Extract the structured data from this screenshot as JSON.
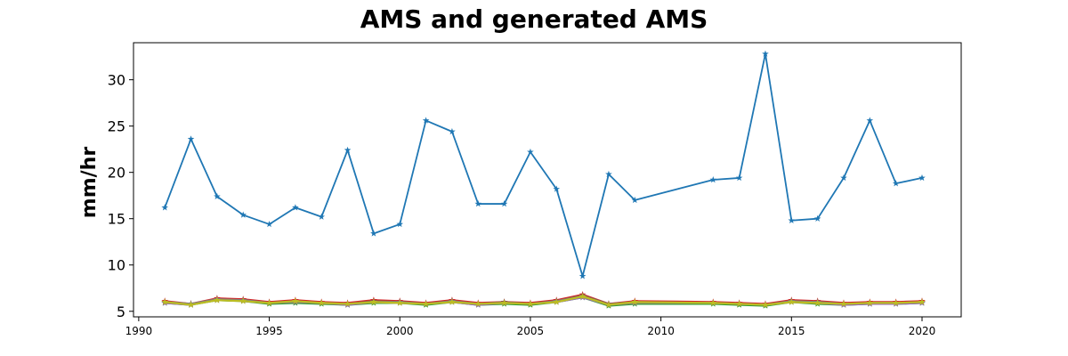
{
  "chart_data": {
    "type": "line",
    "title": "AMS and generated AMS",
    "xlabel": "",
    "ylabel": "mm/hr",
    "xlim": [
      1989.8,
      2021.5
    ],
    "ylim": [
      4.4,
      34.0
    ],
    "xticks": [
      1990,
      1995,
      2000,
      2005,
      2010,
      2015,
      2020
    ],
    "yticks": [
      5,
      10,
      15,
      20,
      25,
      30
    ],
    "grid": false,
    "legend": "none",
    "series": [
      {
        "color": "#1f77b4",
        "marker": "star",
        "x": [
          1991,
          1992,
          1993,
          1994,
          1995,
          1996,
          1997,
          1998,
          1999,
          2000,
          2001,
          2002,
          2003,
          2004,
          2005,
          2006,
          2007,
          2008,
          2009,
          2012,
          2013,
          2014,
          2015,
          2016,
          2017,
          2018,
          2019,
          2020
        ],
        "values": [
          16.2,
          23.6,
          17.4,
          15.4,
          14.4,
          16.2,
          15.2,
          22.4,
          13.4,
          14.4,
          25.6,
          24.4,
          16.6,
          16.6,
          22.2,
          18.2,
          8.8,
          19.8,
          17.0,
          19.2,
          19.4,
          32.8,
          14.8,
          15.0,
          19.4,
          25.6,
          18.8,
          19.4
        ]
      },
      {
        "color": "#ff7f0e",
        "marker": "star",
        "x": [
          1991,
          1992,
          1993,
          1994,
          1995,
          1996,
          1997,
          1998,
          1999,
          2000,
          2001,
          2002,
          2003,
          2004,
          2005,
          2006,
          2007,
          2008,
          2009,
          2012,
          2013,
          2014,
          2015,
          2016,
          2017,
          2018,
          2019,
          2020
        ],
        "values": [
          6.0,
          5.8,
          6.3,
          6.2,
          5.9,
          6.1,
          5.9,
          5.8,
          6.1,
          6.0,
          5.8,
          6.1,
          5.8,
          5.9,
          5.8,
          6.1,
          6.6,
          5.7,
          6.0,
          5.9,
          5.8,
          5.7,
          6.1,
          6.0,
          5.8,
          5.9,
          5.9,
          6.0
        ]
      },
      {
        "color": "#2ca02c",
        "marker": "star",
        "x": [
          1991,
          1992,
          1993,
          1994,
          1995,
          1996,
          1997,
          1998,
          1999,
          2000,
          2001,
          2002,
          2003,
          2004,
          2005,
          2006,
          2007,
          2008,
          2009,
          2012,
          2013,
          2014,
          2015,
          2016,
          2017,
          2018,
          2019,
          2020
        ],
        "values": [
          5.9,
          5.7,
          6.2,
          6.1,
          5.8,
          5.9,
          5.8,
          5.7,
          5.9,
          5.9,
          5.7,
          6.0,
          5.7,
          5.8,
          5.7,
          6.0,
          6.5,
          5.6,
          5.8,
          5.8,
          5.7,
          5.6,
          6.0,
          5.8,
          5.7,
          5.8,
          5.8,
          5.9
        ]
      },
      {
        "color": "#d62728",
        "marker": "star",
        "x": [
          1991,
          1992,
          1993,
          1994,
          1995,
          1996,
          1997,
          1998,
          1999,
          2000,
          2001,
          2002,
          2003,
          2004,
          2005,
          2006,
          2007,
          2008,
          2009,
          2012,
          2013,
          2014,
          2015,
          2016,
          2017,
          2018,
          2019,
          2020
        ],
        "values": [
          6.1,
          5.8,
          6.4,
          6.3,
          6.0,
          6.2,
          6.0,
          5.9,
          6.2,
          6.1,
          5.9,
          6.2,
          5.9,
          6.0,
          5.9,
          6.2,
          6.8,
          5.8,
          6.1,
          6.0,
          5.9,
          5.8,
          6.2,
          6.1,
          5.9,
          6.0,
          6.0,
          6.1
        ]
      },
      {
        "color": "#9467bd",
        "marker": "star",
        "x": [
          1991,
          1992,
          1993,
          1994,
          1995,
          1996,
          1997,
          1998,
          1999,
          2000,
          2001,
          2002,
          2003,
          2004,
          2005,
          2006,
          2007,
          2008,
          2009,
          2012,
          2013,
          2014,
          2015,
          2016,
          2017,
          2018,
          2019,
          2020
        ],
        "values": [
          5.9,
          5.7,
          6.3,
          6.1,
          5.9,
          6.0,
          5.9,
          5.7,
          6.0,
          5.9,
          5.8,
          6.0,
          5.7,
          5.9,
          5.8,
          6.0,
          6.5,
          5.7,
          5.9,
          5.9,
          5.8,
          5.7,
          6.0,
          5.9,
          5.7,
          5.8,
          5.8,
          5.9
        ]
      },
      {
        "color": "#8c564b",
        "marker": "star",
        "x": [
          1991,
          1992,
          1993,
          1994,
          1995,
          1996,
          1997,
          1998,
          1999,
          2000,
          2001,
          2002,
          2003,
          2004,
          2005,
          2006,
          2007,
          2008,
          2009,
          2012,
          2013,
          2014,
          2015,
          2016,
          2017,
          2018,
          2019,
          2020
        ],
        "values": [
          6.0,
          5.8,
          6.2,
          6.2,
          5.9,
          6.1,
          5.9,
          5.8,
          6.1,
          6.0,
          5.8,
          6.1,
          5.8,
          6.0,
          5.8,
          6.1,
          6.7,
          5.8,
          6.0,
          5.9,
          5.8,
          5.7,
          6.1,
          6.0,
          5.8,
          5.9,
          5.9,
          6.0
        ]
      },
      {
        "color": "#7f7f7f",
        "marker": "star",
        "x": [
          1991,
          1992,
          1993,
          1994,
          1995,
          1996,
          1997,
          1998,
          1999,
          2000,
          2001,
          2002,
          2003,
          2004,
          2005,
          2006,
          2007,
          2008,
          2009,
          2012,
          2013,
          2014,
          2015,
          2016,
          2017,
          2018,
          2019,
          2020
        ],
        "values": [
          6.0,
          5.8,
          6.3,
          6.2,
          5.9,
          6.0,
          5.9,
          5.8,
          6.0,
          6.0,
          5.8,
          6.1,
          5.8,
          5.9,
          5.8,
          6.1,
          6.6,
          5.7,
          5.9,
          5.9,
          5.8,
          5.7,
          6.1,
          6.0,
          5.8,
          5.9,
          5.9,
          6.0
        ]
      },
      {
        "color": "#bcbd22",
        "marker": "star",
        "x": [
          1991,
          1992,
          1993,
          1994,
          1995,
          1996,
          1997,
          1998,
          1999,
          2000,
          2001,
          2002,
          2003,
          2004,
          2005,
          2006,
          2007,
          2008,
          2009,
          2012,
          2013,
          2014,
          2015,
          2016,
          2017,
          2018,
          2019,
          2020
        ],
        "values": [
          6.0,
          5.7,
          6.2,
          6.1,
          5.9,
          6.1,
          5.9,
          5.8,
          6.0,
          5.9,
          5.8,
          6.0,
          5.8,
          5.9,
          5.8,
          6.0,
          6.6,
          5.7,
          6.0,
          5.9,
          5.8,
          5.7,
          6.0,
          5.9,
          5.8,
          5.9,
          5.9,
          6.0
        ]
      }
    ]
  }
}
